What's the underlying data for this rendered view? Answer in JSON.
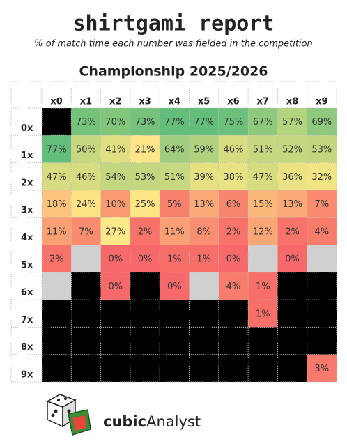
{
  "header": {
    "title": "shirtgami report",
    "subtitle": "% of match time each number was fielded in the competition"
  },
  "table": {
    "title": "Championship 2025/2026",
    "columns": [
      "x0",
      "x1",
      "x2",
      "x3",
      "x4",
      "x5",
      "x6",
      "x7",
      "x8",
      "x9"
    ],
    "rows": [
      {
        "label": "0x",
        "cells": [
          null,
          "73%",
          "70%",
          "73%",
          "77%",
          "77%",
          "75%",
          "67%",
          "57%",
          "69%"
        ],
        "colors": [
          "#000000",
          "#74c27c",
          "#82c67c",
          "#74c27c",
          "#63be7b",
          "#63be7b",
          "#6cc07b",
          "#8fc97d",
          "#b5d47f",
          "#8fc97d"
        ]
      },
      {
        "label": "1x",
        "cells": [
          "77%",
          "50%",
          "41%",
          "21%",
          "64%",
          "59%",
          "46%",
          "51%",
          "52%",
          "53%"
        ],
        "colors": [
          "#63be7b",
          "#c7d980",
          "#e0e082",
          "#fee589",
          "#a0ce7e",
          "#b0d27f",
          "#d6dd81",
          "#c7d980",
          "#c4d880",
          "#c2d780"
        ]
      },
      {
        "label": "2x",
        "cells": [
          "47%",
          "46%",
          "54%",
          "53%",
          "51%",
          "39%",
          "38%",
          "47%",
          "36%",
          "32%"
        ],
        "colors": [
          "#d6dd81",
          "#d6dd81",
          "#c2d780",
          "#c2d780",
          "#c7d980",
          "#e5e182",
          "#e8e283",
          "#d6dd81",
          "#ebe383",
          "#f1e584"
        ]
      },
      {
        "label": "3x",
        "cells": [
          "18%",
          "24%",
          "10%",
          "25%",
          "5%",
          "13%",
          "6%",
          "15%",
          "13%",
          "7%"
        ],
        "colors": [
          "#fdc47d",
          "#fee384",
          "#fa9a73",
          "#fee685",
          "#f8816d",
          "#fbaa77",
          "#f8856e",
          "#fcb77a",
          "#fbaa77",
          "#f98b6f"
        ]
      },
      {
        "label": "4x",
        "cells": [
          "11%",
          "7%",
          "27%",
          "2%",
          "11%",
          "8%",
          "2%",
          "12%",
          "2%",
          "4%"
        ],
        "colors": [
          "#fba075",
          "#f98b6f",
          "#fee889",
          "#f8736a",
          "#fba075",
          "#f98e70",
          "#f8736a",
          "#fba676",
          "#f8736a",
          "#f87c6c"
        ]
      },
      {
        "label": "5x",
        "cells": [
          "2%",
          null,
          "0%",
          "0%",
          "1%",
          "1%",
          "0%",
          null,
          "0%",
          null
        ],
        "colors": [
          "#f8736a",
          "#d0d0d0",
          "#f8696b",
          "#f8696b",
          "#f86f69",
          "#f86f69",
          "#f8696b",
          "#d0d0d0",
          "#f8696b",
          "#d0d0d0"
        ]
      },
      {
        "label": "6x",
        "cells": [
          null,
          null,
          "0%",
          null,
          "0%",
          null,
          "4%",
          "1%",
          null,
          null
        ],
        "colors": [
          "#d0d0d0",
          "#000000",
          "#f8696b",
          "#000000",
          "#f8696b",
          "#d0d0d0",
          "#f87c6c",
          "#f86f69",
          "#000000",
          "#000000"
        ]
      },
      {
        "label": "7x",
        "cells": [
          null,
          null,
          null,
          null,
          null,
          null,
          null,
          "1%",
          null,
          null
        ],
        "colors": [
          "#000000",
          "#000000",
          "#000000",
          "#000000",
          "#000000",
          "#000000",
          "#000000",
          "#f86f69",
          "#000000",
          "#000000"
        ]
      },
      {
        "label": "8x",
        "cells": [
          null,
          null,
          null,
          null,
          null,
          null,
          null,
          null,
          null,
          null
        ],
        "colors": [
          "#000000",
          "#000000",
          "#000000",
          "#000000",
          "#000000",
          "#000000",
          "#000000",
          "#000000",
          "#000000",
          "#000000"
        ]
      },
      {
        "label": "9x",
        "cells": [
          null,
          null,
          null,
          null,
          null,
          null,
          null,
          null,
          null,
          "3%"
        ],
        "colors": [
          "#000000",
          "#000000",
          "#000000",
          "#000000",
          "#000000",
          "#000000",
          "#000000",
          "#000000",
          "#000000",
          "#f87a6c"
        ]
      }
    ]
  },
  "logo": {
    "bold": "cubic",
    "text": "Analyst"
  }
}
